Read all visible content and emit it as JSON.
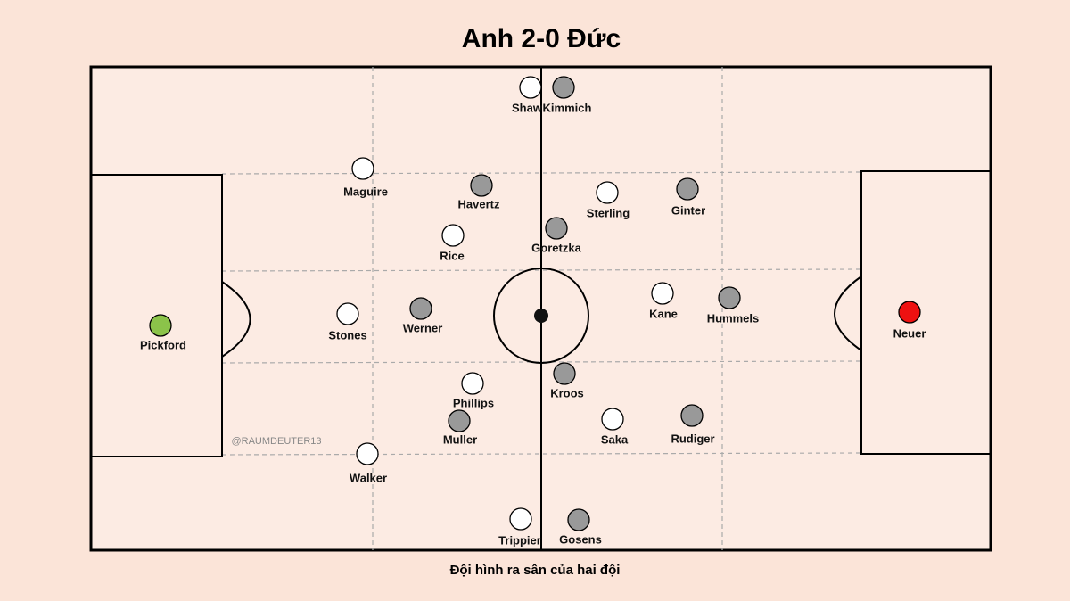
{
  "title": "Anh 2-0 Đức",
  "caption": "Đội hình ra sân của hai đội",
  "watermark": "@RAUMDEUTER13",
  "players": [
    "Shaw",
    "Kimmich",
    "Maguire",
    "Havertz",
    "Sterling",
    "Ginter",
    "Goretzka",
    "Rice",
    "Kane",
    "Hummels",
    "Stones",
    "Werner",
    "Pickford",
    "Neuer",
    "Phillips",
    "Kroos",
    "Muller",
    "Saka",
    "Rudiger",
    "Walker",
    "Trippier",
    "Gosens"
  ]
}
